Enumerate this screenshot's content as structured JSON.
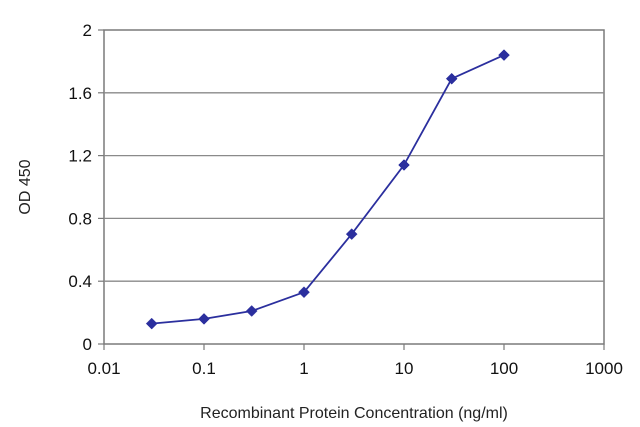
{
  "chart_data": {
    "type": "line",
    "title": "",
    "xlabel": "Recombinant Protein Concentration (ng/ml)",
    "ylabel": "OD 450",
    "x_scale": "log",
    "xlim": [
      0.01,
      1000
    ],
    "ylim": [
      0,
      2
    ],
    "x_ticks": [
      0.01,
      0.1,
      1,
      10,
      100,
      1000
    ],
    "x_tick_labels": [
      "0.01",
      "0.1",
      "1",
      "10",
      "100",
      "1000"
    ],
    "y_ticks": [
      0,
      0.4,
      0.8,
      1.2,
      1.6,
      2
    ],
    "y_tick_labels": [
      "0",
      "0.4",
      "0.8",
      "1.2",
      "1.6",
      "2"
    ],
    "grid": "horizontal",
    "legend": "none",
    "series": [
      {
        "color": "#2b2f9e",
        "marker": "diamond",
        "x": [
          0.03,
          0.1,
          0.3,
          1,
          3,
          10,
          30,
          100
        ],
        "y": [
          0.13,
          0.16,
          0.21,
          0.33,
          0.7,
          1.14,
          1.69,
          1.84
        ]
      }
    ]
  }
}
